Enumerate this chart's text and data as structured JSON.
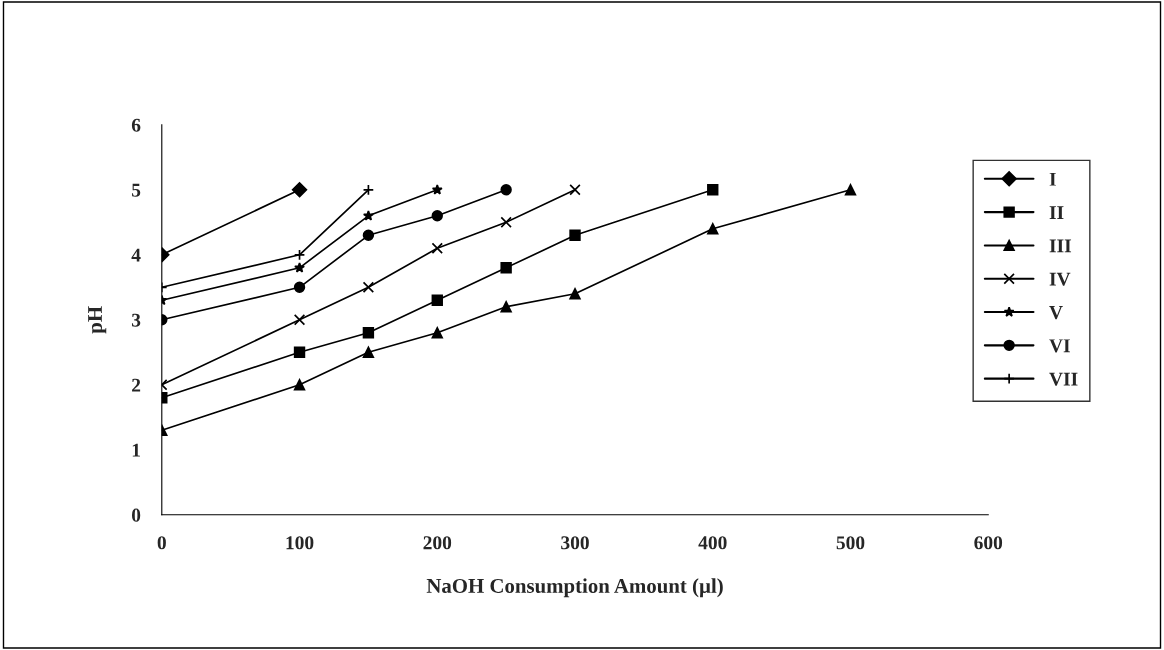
{
  "chart_data": {
    "type": "line",
    "xlabel": "NaOH Consumption Amount (µl)",
    "ylabel": "pH",
    "xlim": [
      0,
      600
    ],
    "xticks": [
      0,
      100,
      200,
      300,
      400,
      500,
      600
    ],
    "ylim": [
      0,
      6
    ],
    "yticks": [
      0,
      1,
      2,
      3,
      4,
      5,
      6
    ],
    "grid": false,
    "legend": "right",
    "line_style": "solid",
    "series": [
      {
        "name": "I",
        "color": "#000000",
        "marker": "diamond",
        "x": [
          0,
          100
        ],
        "values": [
          4,
          5
        ]
      },
      {
        "name": "II",
        "color": "#000000",
        "marker": "square",
        "x": [
          0,
          100,
          150,
          200,
          250,
          300,
          400
        ],
        "values": [
          1.8,
          2.5,
          2.8,
          3.3,
          3.8,
          4.3,
          5
        ]
      },
      {
        "name": "III",
        "color": "#000000",
        "marker": "triangle",
        "x": [
          0,
          100,
          150,
          200,
          250,
          300,
          400,
          500
        ],
        "values": [
          1.3,
          2,
          2.5,
          2.8,
          3.2,
          3.4,
          4.4,
          5
        ]
      },
      {
        "name": "IV",
        "color": "#000000",
        "marker": "cross",
        "x": [
          0,
          100,
          150,
          200,
          250,
          300
        ],
        "values": [
          2,
          3,
          3.5,
          4.1,
          4.5,
          5
        ]
      },
      {
        "name": "V",
        "color": "#000000",
        "marker": "star",
        "x": [
          0,
          100,
          150,
          200
        ],
        "values": [
          3.3,
          3.8,
          4.6,
          5
        ]
      },
      {
        "name": "VI",
        "color": "#000000",
        "marker": "circle",
        "x": [
          0,
          100,
          150,
          200,
          250
        ],
        "values": [
          3,
          3.5,
          4.3,
          4.6,
          5
        ]
      },
      {
        "name": "VII",
        "color": "#000000",
        "marker": "plus",
        "x": [
          0,
          100,
          150
        ],
        "values": [
          3.5,
          4,
          5
        ]
      }
    ]
  }
}
